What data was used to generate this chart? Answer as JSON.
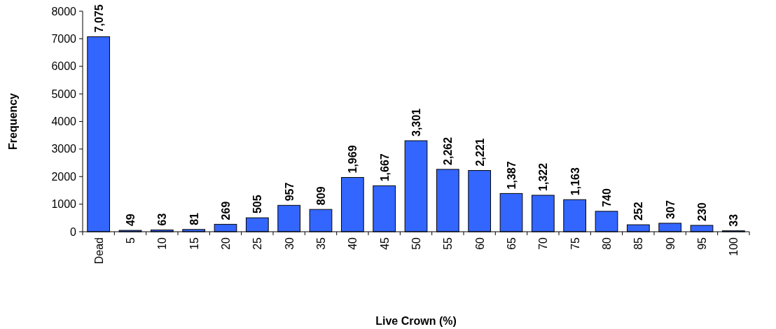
{
  "chart_data": {
    "type": "bar",
    "xlabel": "Live Crown (%)",
    "ylabel": "Frequency",
    "categories": [
      "Dead",
      "5",
      "10",
      "15",
      "20",
      "25",
      "30",
      "35",
      "40",
      "45",
      "50",
      "55",
      "60",
      "65",
      "70",
      "75",
      "80",
      "85",
      "90",
      "95",
      "100"
    ],
    "values": [
      7075,
      49,
      63,
      81,
      269,
      505,
      957,
      809,
      1969,
      1667,
      3301,
      2262,
      2221,
      1387,
      1322,
      1163,
      740,
      252,
      307,
      230,
      33
    ],
    "value_labels": [
      "7,075",
      "49",
      "63",
      "81",
      "269",
      "505",
      "957",
      "809",
      "1,969",
      "1,667",
      "3,301",
      "2,262",
      "2,221",
      "1,387",
      "1,322",
      "1,163",
      "740",
      "252",
      "307",
      "230",
      "33"
    ],
    "color": "#3366ff",
    "ylim": [
      0,
      8000
    ],
    "yticks": [
      0,
      1000,
      2000,
      3000,
      4000,
      5000,
      6000,
      7000,
      8000
    ],
    "grid": false
  }
}
